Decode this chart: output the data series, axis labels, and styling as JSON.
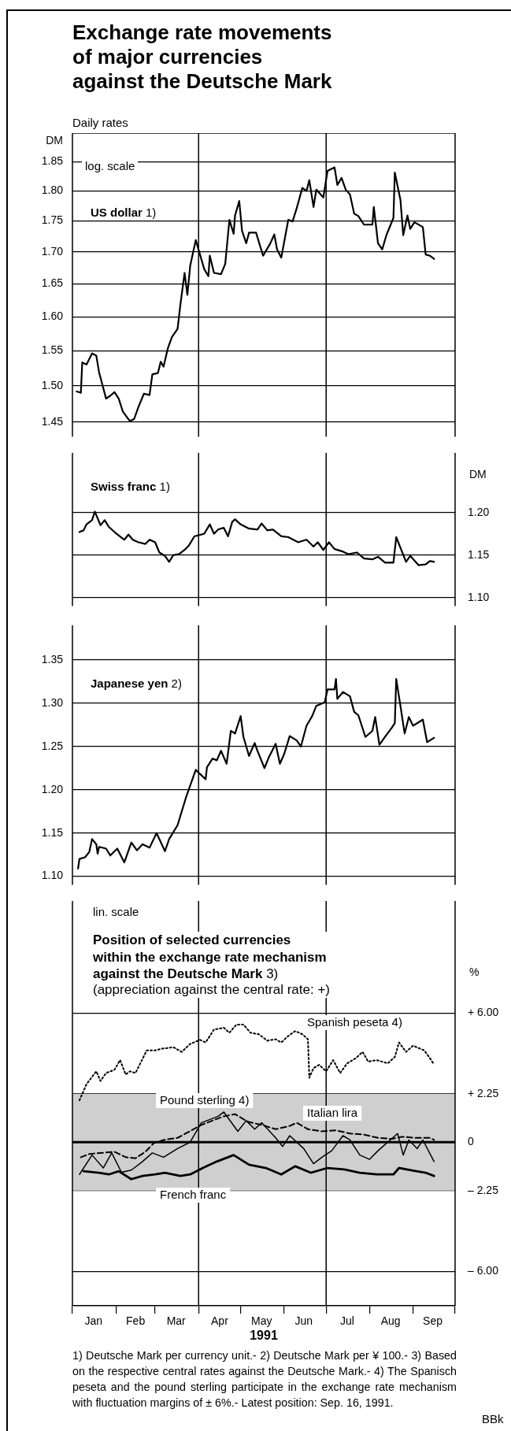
{
  "chart_data": [
    {
      "type": "line",
      "title": "Exchange rate movements\nof major currencies\nagainst the Deutsche Mark",
      "subtitle": "Daily rates",
      "ylabel": "DM",
      "annotations": [
        "log. scale"
      ],
      "log": "y",
      "grid": "y",
      "marker": "none",
      "tick_labels": "y",
      "xlim": [
        "1991-01-01",
        "1991-10-01"
      ],
      "ylim": [
        1.43,
        1.9
      ],
      "yticks": [
        1.45,
        {
          "value": 1.5,
          "label": "1.50"
        },
        1.55,
        {
          "value": 1.6,
          "label": "1.60"
        },
        1.65,
        {
          "value": 1.7,
          "label": "1.70"
        },
        1.75,
        {
          "value": 1.8,
          "label": "1.80"
        },
        1.85
      ],
      "ref_lines": [
        {
          "axis": "x",
          "value": "1991-04-01"
        },
        {
          "axis": "x",
          "value": "1991-07-01"
        }
      ],
      "series": [
        {
          "name": "US dollar 1)",
          "color": "#000000",
          "x": [
            "1991-01-04",
            "1991-01-07",
            "1991-01-08",
            "1991-01-11",
            "1991-01-15",
            "1991-01-18",
            "1991-01-20",
            "1991-01-25",
            "1991-01-28",
            "1991-01-31",
            "1991-02-03",
            "1991-02-06",
            "1991-02-11",
            "1991-02-14",
            "1991-02-17",
            "1991-02-21",
            "1991-02-25",
            "1991-02-27",
            "1991-03-03",
            "1991-03-05",
            "1991-03-07",
            "1991-03-10",
            "1991-03-13",
            "1991-03-17",
            "1991-03-19",
            "1991-03-22",
            "1991-03-24",
            "1991-03-26",
            "1991-03-30",
            "1991-04-02",
            "1991-04-05",
            "1991-04-08",
            "1991-04-09",
            "1991-04-12",
            "1991-04-17",
            "1991-04-20",
            "1991-04-23",
            "1991-04-26",
            "1991-04-27",
            "1991-04-30",
            "1991-05-02",
            "1991-05-05",
            "1991-05-07",
            "1991-05-12",
            "1991-05-17",
            "1991-05-22",
            "1991-05-25",
            "1991-05-27",
            "1991-05-30",
            "1991-06-04",
            "1991-06-07",
            "1991-06-10",
            "1991-06-14",
            "1991-06-17",
            "1991-06-19",
            "1991-06-22",
            "1991-06-24",
            "1991-06-29",
            "1991-07-02",
            "1991-07-07",
            "1991-07-09",
            "1991-07-12",
            "1991-07-15",
            "1991-07-18",
            "1991-07-21",
            "1991-07-24",
            "1991-07-28",
            "1991-08-03",
            "1991-08-04",
            "1991-08-07",
            "1991-08-10",
            "1991-08-13",
            "1991-08-18",
            "1991-08-19",
            "1991-08-23",
            "1991-08-25",
            "1991-08-28",
            "1991-08-30",
            "1991-09-02",
            "1991-09-08",
            "1991-09-10",
            "1991-09-13",
            "1991-09-16"
          ],
          "values": [
            1.492,
            1.49,
            1.533,
            1.53,
            1.546,
            1.543,
            1.519,
            1.482,
            1.486,
            1.491,
            1.482,
            1.464,
            1.451,
            1.454,
            1.47,
            1.489,
            1.487,
            1.516,
            1.518,
            1.534,
            1.527,
            1.553,
            1.57,
            1.582,
            1.618,
            1.667,
            1.633,
            1.678,
            1.719,
            1.696,
            1.673,
            1.662,
            1.694,
            1.667,
            1.665,
            1.681,
            1.752,
            1.729,
            1.759,
            1.783,
            1.734,
            1.714,
            1.731,
            1.731,
            1.694,
            1.713,
            1.728,
            1.704,
            1.691,
            1.752,
            1.749,
            1.771,
            1.805,
            1.8,
            1.818,
            1.773,
            1.802,
            1.789,
            1.834,
            1.84,
            1.81,
            1.822,
            1.802,
            1.794,
            1.762,
            1.758,
            1.744,
            1.744,
            1.773,
            1.714,
            1.704,
            1.727,
            1.755,
            1.831,
            1.785,
            1.727,
            1.759,
            1.737,
            1.748,
            1.74,
            1.696,
            1.694,
            1.689
          ]
        }
      ]
    },
    {
      "type": "line",
      "y2label": "DM",
      "grid": "y",
      "marker": "none",
      "tick_labels": "y",
      "xlim": [
        "1991-01-01",
        "1991-10-01"
      ],
      "y2lim": [
        1.09,
        1.27
      ],
      "y2ticks": [
        {
          "value": 1.1,
          "label": "1.10"
        },
        1.15,
        {
          "value": 1.2,
          "label": "1.20"
        }
      ],
      "ref_lines": [
        {
          "axis": "x",
          "value": "1991-04-01"
        },
        {
          "axis": "x",
          "value": "1991-07-01"
        }
      ],
      "series": [
        {
          "name": "Swiss franc 1)",
          "color": "#000000",
          "axis": "y2",
          "x": [
            "1991-01-06",
            "1991-01-09",
            "1991-01-11",
            "1991-01-15",
            "1991-01-17",
            "1991-01-19",
            "1991-01-21",
            "1991-01-24",
            "1991-01-27",
            "1991-01-31",
            "1991-02-03",
            "1991-02-07",
            "1991-02-10",
            "1991-02-13",
            "1991-02-17",
            "1991-02-22",
            "1991-02-25",
            "1991-03-01",
            "1991-03-04",
            "1991-03-08",
            "1991-03-11",
            "1991-03-14",
            "1991-03-18",
            "1991-03-22",
            "1991-03-25",
            "1991-03-29",
            "1991-04-05",
            "1991-04-09",
            "1991-04-12",
            "1991-04-15",
            "1991-04-19",
            "1991-04-22",
            "1991-04-25",
            "1991-04-27",
            "1991-05-01",
            "1991-05-07",
            "1991-05-13",
            "1991-05-16",
            "1991-05-20",
            "1991-05-24",
            "1991-05-30",
            "1991-06-04",
            "1991-06-11",
            "1991-06-17",
            "1991-06-22",
            "1991-06-25",
            "1991-06-29",
            "1991-07-03",
            "1991-07-07",
            "1991-07-13",
            "1991-07-17",
            "1991-07-23",
            "1991-07-28",
            "1991-08-03",
            "1991-08-07",
            "1991-08-12",
            "1991-08-18",
            "1991-08-20",
            "1991-08-27",
            "1991-08-30",
            "1991-09-05",
            "1991-09-10",
            "1991-09-13",
            "1991-09-16"
          ],
          "values": [
            1.177,
            1.179,
            1.186,
            1.191,
            1.201,
            1.193,
            1.185,
            1.191,
            1.183,
            1.177,
            1.173,
            1.168,
            1.174,
            1.168,
            1.165,
            1.163,
            1.168,
            1.165,
            1.153,
            1.149,
            1.142,
            1.15,
            1.151,
            1.156,
            1.161,
            1.172,
            1.175,
            1.186,
            1.175,
            1.18,
            1.182,
            1.172,
            1.189,
            1.192,
            1.186,
            1.181,
            1.18,
            1.187,
            1.179,
            1.18,
            1.172,
            1.171,
            1.165,
            1.168,
            1.16,
            1.165,
            1.156,
            1.165,
            1.157,
            1.154,
            1.151,
            1.153,
            1.146,
            1.145,
            1.148,
            1.141,
            1.141,
            1.171,
            1.142,
            1.149,
            1.138,
            1.139,
            1.143,
            1.142
          ]
        }
      ]
    },
    {
      "type": "line",
      "grid": "y",
      "marker": "none",
      "tick_labels": "y",
      "xlim": [
        "1991-01-01",
        "1991-10-01"
      ],
      "ylim": [
        1.09,
        1.39
      ],
      "yticks": [
        {
          "value": 1.1,
          "label": "1.10"
        },
        1.15,
        {
          "value": 1.2,
          "label": "1.20"
        },
        1.25,
        {
          "value": 1.3,
          "label": "1.30"
        },
        1.35
      ],
      "ref_lines": [
        {
          "axis": "x",
          "value": "1991-04-01"
        },
        {
          "axis": "x",
          "value": "1991-07-01"
        }
      ],
      "series": [
        {
          "name": "Japanese yen 2)",
          "color": "#000000",
          "x": [
            "1991-01-05",
            "1991-01-06",
            "1991-01-10",
            "1991-01-13",
            "1991-01-15",
            "1991-01-18",
            "1991-01-19",
            "1991-01-20",
            "1991-01-25",
            "1991-01-28",
            "1991-02-02",
            "1991-02-07",
            "1991-02-12",
            "1991-02-16",
            "1991-02-20",
            "1991-02-25",
            "1991-03-02",
            "1991-03-08",
            "1991-03-11",
            "1991-03-17",
            "1991-03-23",
            "1991-03-30",
            "1991-04-06",
            "1991-04-07",
            "1991-04-11",
            "1991-04-14",
            "1991-04-17",
            "1991-04-21",
            "1991-04-24",
            "1991-04-27",
            "1991-05-01",
            "1991-05-03",
            "1991-05-07",
            "1991-05-11",
            "1991-05-13",
            "1991-05-18",
            "1991-05-21",
            "1991-05-26",
            "1991-05-29",
            "1991-06-01",
            "1991-06-05",
            "1991-06-10",
            "1991-06-13",
            "1991-06-17",
            "1991-06-21",
            "1991-06-24",
            "1991-06-30",
            "1991-07-02",
            "1991-07-07",
            "1991-07-08",
            "1991-07-09",
            "1991-07-13",
            "1991-07-18",
            "1991-07-21",
            "1991-07-24",
            "1991-07-29",
            "1991-08-03",
            "1991-08-05",
            "1991-08-08",
            "1991-08-12",
            "1991-08-17",
            "1991-08-19",
            "1991-08-20",
            "1991-08-23",
            "1991-08-26",
            "1991-08-29",
            "1991-09-01",
            "1991-09-08",
            "1991-09-11",
            "1991-09-16"
          ],
          "values": [
            1.109,
            1.12,
            1.122,
            1.128,
            1.143,
            1.137,
            1.126,
            1.134,
            1.132,
            1.124,
            1.132,
            1.116,
            1.139,
            1.13,
            1.137,
            1.133,
            1.15,
            1.129,
            1.143,
            1.159,
            1.191,
            1.223,
            1.212,
            1.226,
            1.236,
            1.234,
            1.245,
            1.23,
            1.268,
            1.265,
            1.285,
            1.261,
            1.239,
            1.254,
            1.245,
            1.225,
            1.237,
            1.253,
            1.23,
            1.241,
            1.262,
            1.257,
            1.25,
            1.274,
            1.285,
            1.297,
            1.301,
            1.316,
            1.316,
            1.328,
            1.305,
            1.313,
            1.308,
            1.29,
            1.286,
            1.261,
            1.268,
            1.284,
            1.252,
            1.261,
            1.272,
            1.277,
            1.328,
            1.297,
            1.265,
            1.284,
            1.274,
            1.281,
            1.255,
            1.26
          ]
        }
      ]
    },
    {
      "type": "line",
      "title": "Position of selected currencies\nwithin the exchange rate mechanism\nagainst the Deutsche Mark 3)",
      "subtitle": "(appreciation against the central rate: +)",
      "xlabel": "1991",
      "y2label": "%",
      "annotations": [
        "lin. scale",
        "1) Deutsche Mark per currency unit.- 2) Deutsche Mark per ¥ 100.- 3) Based on the respective central rates against the Deutsche Mark.- 4) The Spanisch peseta and the pound sterling participate in the exchange rate mechanism with fluctuation margins of ± 6%.- Latest position: Sep. 16, 1991.",
        "BBk"
      ],
      "grid": "y",
      "marker": "none",
      "xlim": [
        "1991-01-01",
        "1991-10-01"
      ],
      "xticks": [
        {
          "value": "1991-01-01",
          "label": null
        },
        {
          "value": "1991-01-16",
          "label": "Jan"
        },
        {
          "value": "1991-02-01",
          "label": null
        },
        {
          "value": "1991-02-15",
          "label": "Feb"
        },
        {
          "value": "1991-03-01",
          "label": null
        },
        {
          "value": "1991-03-16",
          "label": "Mar"
        },
        {
          "value": "1991-04-01",
          "label": null
        },
        {
          "value": "1991-04-16",
          "label": "Apr"
        },
        {
          "value": "1991-05-01",
          "label": null
        },
        {
          "value": "1991-05-16",
          "label": "May"
        },
        {
          "value": "1991-06-01",
          "label": null
        },
        {
          "value": "1991-06-15",
          "label": "Jun"
        },
        {
          "value": "1991-07-01",
          "label": null
        },
        {
          "value": "1991-07-16",
          "label": "Jul"
        },
        {
          "value": "1991-08-01",
          "label": null
        },
        {
          "value": "1991-08-16",
          "label": "Aug"
        },
        {
          "value": "1991-09-01",
          "label": null
        },
        {
          "value": "1991-09-15",
          "label": "Sep"
        },
        {
          "value": "1991-10-01",
          "label": null
        }
      ],
      "y2lim": [
        -7.6,
        11.2
      ],
      "y2ticks": [
        {
          "value": -6,
          "label": "– 6.00"
        },
        {
          "value": -2.25,
          "label": "– 2.25"
        },
        0,
        {
          "value": 2.25,
          "label": "+ 2.25"
        },
        {
          "value": 6,
          "label": "+ 6.00"
        }
      ],
      "bands": [
        {
          "axis": "y2",
          "from": -2.25,
          "to": 2.25,
          "color": "#cfcfcf"
        }
      ],
      "ref_lines": [
        {
          "axis": "x",
          "value": "1991-04-01"
        },
        {
          "axis": "x",
          "value": "1991-07-01"
        },
        {
          "axis": "y2",
          "value": 0
        }
      ],
      "series": [
        {
          "name": "Spanish peseta 4)",
          "color": "#000000",
          "axis": "y2",
          "line_style": "dotted",
          "x": [
            "1991-01-06",
            "1991-01-11",
            "1991-01-18",
            "1991-01-21",
            "1991-01-25",
            "1991-01-31",
            "1991-02-04",
            "1991-02-08",
            "1991-02-11",
            "1991-02-15",
            "1991-02-23",
            "1991-03-01",
            "1991-03-05",
            "1991-03-14",
            "1991-03-20",
            "1991-03-26",
            "1991-04-02",
            "1991-04-06",
            "1991-04-12",
            "1991-04-19",
            "1991-04-23",
            "1991-04-28",
            "1991-05-03",
            "1991-05-08",
            "1991-05-14",
            "1991-05-20",
            "1991-05-26",
            "1991-05-30",
            "1991-06-04",
            "1991-06-09",
            "1991-06-14",
            "1991-06-18",
            "1991-06-19",
            "1991-06-22",
            "1991-06-26",
            "1991-07-01",
            "1991-07-06",
            "1991-07-11",
            "1991-07-16",
            "1991-07-22",
            "1991-07-27",
            "1991-07-31",
            "1991-08-06",
            "1991-08-14",
            "1991-08-19",
            "1991-08-22",
            "1991-08-27",
            "1991-09-01",
            "1991-09-09",
            "1991-09-14",
            "1991-09-16"
          ],
          "values": [
            1.94,
            2.69,
            3.29,
            2.84,
            3.21,
            3.36,
            3.81,
            3.14,
            3.29,
            3.21,
            4.26,
            4.26,
            4.33,
            4.41,
            4.19,
            4.56,
            4.75,
            4.63,
            5.23,
            5.31,
            5.08,
            5.46,
            5.46,
            5.08,
            5.01,
            4.71,
            4.78,
            4.63,
            4.93,
            5.16,
            5.01,
            4.78,
            2.99,
            3.44,
            3.59,
            3.29,
            3.81,
            3.21,
            3.66,
            3.89,
            4.19,
            3.74,
            3.81,
            3.66,
            3.96,
            4.63,
            4.19,
            4.48,
            4.26,
            3.81,
            3.59
          ]
        },
        {
          "name": "Pound sterling 4)",
          "color": "#000000",
          "axis": "y2",
          "line_style": "solid",
          "x": [
            "1991-01-06",
            "1991-01-15",
            "1991-01-23",
            "1991-01-29",
            "1991-02-05",
            "1991-02-12",
            "1991-02-20",
            "1991-02-27",
            "1991-03-07",
            "1991-03-17",
            "1991-03-26",
            "1991-04-03",
            "1991-04-15",
            "1991-04-19",
            "1991-04-29",
            "1991-05-05",
            "1991-05-11",
            "1991-05-16",
            "1991-05-26",
            "1991-05-31",
            "1991-06-05",
            "1991-06-15",
            "1991-06-22",
            "1991-06-28",
            "1991-07-05",
            "1991-07-13",
            "1991-07-18",
            "1991-07-25",
            "1991-08-01",
            "1991-08-07",
            "1991-08-21",
            "1991-08-25",
            "1991-08-29",
            "1991-09-04",
            "1991-09-08",
            "1991-09-16"
          ],
          "values": [
            -1.5,
            -0.6,
            -1.2,
            -0.5,
            -1.4,
            -1.3,
            -0.9,
            -0.5,
            -0.7,
            -0.3,
            0,
            0.9,
            1.2,
            1.4,
            0.5,
            1,
            0.6,
            0.9,
            0.2,
            -0.2,
            0.3,
            -0.3,
            -1,
            -0.7,
            -0.4,
            0.3,
            0.1,
            -0.6,
            -0.8,
            -0.4,
            0.4,
            -0.6,
            0.1,
            -0.3,
            0.1,
            -0.9
          ]
        },
        {
          "name": "Italian lira",
          "color": "#000000",
          "axis": "y2",
          "line_style": "dashed",
          "x": [
            "1991-01-07",
            "1991-01-13",
            "1991-01-21",
            "1991-01-31",
            "1991-02-08",
            "1991-02-15",
            "1991-02-22",
            "1991-02-28",
            "1991-03-07",
            "1991-03-17",
            "1991-03-27",
            "1991-04-03",
            "1991-04-11",
            "1991-04-19",
            "1991-04-27",
            "1991-05-06",
            "1991-05-16",
            "1991-05-26",
            "1991-06-05",
            "1991-06-10",
            "1991-06-18",
            "1991-06-28",
            "1991-07-08",
            "1991-07-18",
            "1991-07-28",
            "1991-08-07",
            "1991-08-17",
            "1991-08-24",
            "1991-09-03",
            "1991-09-13",
            "1991-09-16"
          ],
          "values": [
            -0.7,
            -0.55,
            -0.5,
            -0.45,
            -0.7,
            -0.75,
            -0.45,
            -0.05,
            0.1,
            0.2,
            0.55,
            0.8,
            1,
            1.2,
            1.3,
            0.95,
            0.8,
            0.6,
            0.75,
            0.9,
            0.6,
            0.5,
            0.55,
            0.4,
            0.35,
            0.2,
            0.15,
            0.25,
            0.2,
            0.2,
            0.1
          ]
        },
        {
          "name": "French franc",
          "color": "#000000",
          "axis": "y2",
          "line_style": "solid",
          "x": [
            "1991-01-09",
            "1991-01-20",
            "1991-01-27",
            "1991-02-03",
            "1991-02-12",
            "1991-02-20",
            "1991-03-01",
            "1991-03-08",
            "1991-03-19",
            "1991-03-26",
            "1991-04-04",
            "1991-04-14",
            "1991-04-26",
            "1991-05-07",
            "1991-05-19",
            "1991-05-30",
            "1991-06-09",
            "1991-06-20",
            "1991-07-02",
            "1991-07-14",
            "1991-07-25",
            "1991-08-06",
            "1991-08-18",
            "1991-08-22",
            "1991-09-01",
            "1991-09-10",
            "1991-09-16"
          ],
          "values": [
            -1.35,
            -1.42,
            -1.5,
            -1.35,
            -1.72,
            -1.57,
            -1.5,
            -1.42,
            -1.57,
            -1.5,
            -1.2,
            -0.9,
            -0.6,
            -1.05,
            -1.2,
            -1.5,
            -1.12,
            -1.42,
            -1.2,
            -1.27,
            -1.42,
            -1.5,
            -1.5,
            -1.2,
            -1.32,
            -1.42,
            -1.57
          ]
        }
      ]
    }
  ]
}
